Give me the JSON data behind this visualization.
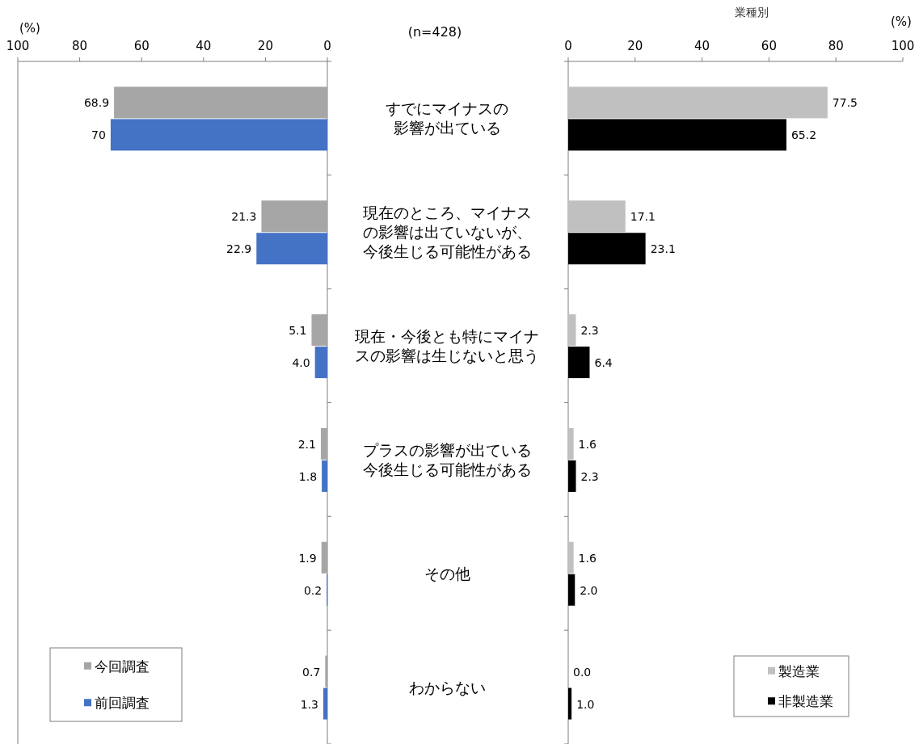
{
  "chart_data": [
    {
      "type": "bar",
      "orientation": "horizontal",
      "xlabel": "(%)",
      "annotations": [
        "(n=428)"
      ],
      "categories": [
        "すでにマイナスの影響が出ている",
        "現在のところ、マイナスの影響は出ていないが、今後生じる可能性がある",
        "現在・今後とも特にマイナスの影響は生じないと思う",
        "プラスの影響が出ている今後生じる可能性がある",
        "その他",
        "わからない"
      ],
      "xlim": [
        100,
        0
      ],
      "xticks": [
        100,
        80,
        60,
        40,
        20,
        0
      ],
      "legend": "bottom left",
      "series": [
        {
          "name": "今回調査",
          "color": "#a6a6a6",
          "values": [
            68.9,
            21.3,
            5.1,
            2.1,
            1.9,
            0.7
          ],
          "value_labels": [
            "68.9",
            "21.3",
            "5.1",
            "2.1",
            "1.9",
            "0.7"
          ]
        },
        {
          "name": "前回調査",
          "color": "#4472c4",
          "values": [
            70,
            22.9,
            4.0,
            1.8,
            0.2,
            1.3
          ],
          "value_labels": [
            "70",
            "22.9",
            "4.0",
            "1.8",
            "0.2",
            "1.3"
          ]
        }
      ]
    },
    {
      "type": "bar",
      "orientation": "horizontal",
      "title": "業種別",
      "xlabel": "(%)",
      "tick_labels": "x",
      "categories": [
        null,
        null,
        null,
        null,
        null,
        null
      ],
      "xlim": [
        0,
        100
      ],
      "xticks": [
        0,
        20,
        40,
        60,
        80,
        100
      ],
      "legend": "bottom right",
      "series": [
        {
          "name": "製造業",
          "color": "#c0c0c0",
          "values": [
            77.5,
            17.1,
            2.3,
            1.6,
            1.6,
            0.0
          ],
          "value_labels": [
            "77.5",
            "17.1",
            "2.3",
            "1.6",
            "1.6",
            "0.0"
          ]
        },
        {
          "name": "非製造業",
          "color": "#000000",
          "values": [
            65.2,
            23.1,
            6.4,
            2.3,
            2.0,
            1.0
          ],
          "value_labels": [
            "65.2",
            "23.1",
            "6.4",
            "2.3",
            "2.0",
            "1.0"
          ]
        }
      ]
    }
  ]
}
